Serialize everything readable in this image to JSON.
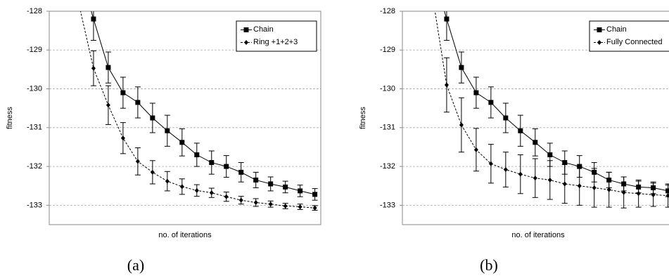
{
  "chart_data": [
    {
      "type": "line",
      "caption": "(a)",
      "ylabel": "fitness",
      "xlabel": "no. of iterations",
      "xlim": [
        0,
        18.4
      ],
      "ylim": [
        -133.5,
        -128
      ],
      "yticks": [
        -128,
        -129,
        -130,
        -131,
        -132,
        -133
      ],
      "grid": true,
      "legend": "upper right",
      "x": [
        2,
        3,
        4,
        5,
        6,
        7,
        8,
        9,
        10,
        11,
        12,
        13,
        14,
        15,
        16,
        17,
        18
      ],
      "series": [
        {
          "name": "Chain",
          "color": "#000000",
          "marker": "square",
          "dashed": false,
          "values": [
            -126.9,
            -128.2,
            -129.45,
            -130.1,
            -130.35,
            -130.75,
            -131.08,
            -131.38,
            -131.7,
            -131.9,
            -132.0,
            -132.15,
            -132.35,
            -132.45,
            -132.53,
            -132.63,
            -132.72
          ],
          "errors": [
            null,
            0.55,
            0.4,
            0.4,
            0.4,
            0.38,
            0.4,
            0.35,
            0.3,
            0.3,
            0.28,
            0.25,
            0.2,
            0.18,
            0.15,
            0.15,
            0.15
          ]
        },
        {
          "name": "Ring +1+2+3",
          "color": "#000000",
          "marker": "diamond",
          "dashed": true,
          "values": [
            -127.8,
            -129.47,
            -130.42,
            -131.27,
            -131.87,
            -132.15,
            -132.38,
            -132.52,
            -132.62,
            -132.68,
            -132.78,
            -132.87,
            -132.93,
            -132.97,
            -133.02,
            -133.04,
            -133.07
          ],
          "errors": [
            null,
            0.45,
            0.5,
            0.4,
            0.35,
            0.3,
            0.25,
            0.2,
            0.15,
            0.12,
            0.12,
            0.1,
            0.1,
            0.08,
            0.07,
            0.07,
            0.06
          ]
        }
      ]
    },
    {
      "type": "line",
      "caption": "(b)",
      "ylabel": "fitness",
      "xlabel": "no. of iterations",
      "xlim": [
        0,
        18.4
      ],
      "ylim": [
        -133.5,
        -128
      ],
      "yticks": [
        -128,
        -129,
        -130,
        -131,
        -132,
        -133
      ],
      "grid": true,
      "legend": "upper right",
      "x": [
        2,
        3,
        4,
        5,
        6,
        7,
        8,
        9,
        10,
        11,
        12,
        13,
        14,
        15,
        16,
        17,
        18
      ],
      "series": [
        {
          "name": "Chain",
          "color": "#000000",
          "marker": "square",
          "dashed": false,
          "values": [
            -126.9,
            -128.2,
            -129.45,
            -130.1,
            -130.35,
            -130.75,
            -131.08,
            -131.38,
            -131.7,
            -131.9,
            -132.0,
            -132.15,
            -132.35,
            -132.45,
            -132.53,
            -132.55,
            -132.63
          ],
          "errors": [
            null,
            0.55,
            0.4,
            0.4,
            0.4,
            0.38,
            0.4,
            0.35,
            0.3,
            0.3,
            0.28,
            0.25,
            0.2,
            0.18,
            0.15,
            0.15,
            0.15
          ]
        },
        {
          "name": "Fully Connected",
          "color": "#000000",
          "marker": "diamond",
          "dashed": true,
          "values": [
            -127.5,
            -129.9,
            -130.93,
            -131.57,
            -131.93,
            -132.08,
            -132.2,
            -132.3,
            -132.35,
            -132.45,
            -132.5,
            -132.55,
            -132.6,
            -132.67,
            -132.7,
            -132.73,
            -132.75
          ],
          "errors": [
            null,
            0.7,
            0.7,
            0.55,
            0.5,
            0.45,
            0.5,
            0.5,
            0.5,
            0.5,
            0.5,
            0.5,
            0.45,
            0.4,
            0.35,
            0.3,
            0.3
          ]
        }
      ]
    }
  ]
}
